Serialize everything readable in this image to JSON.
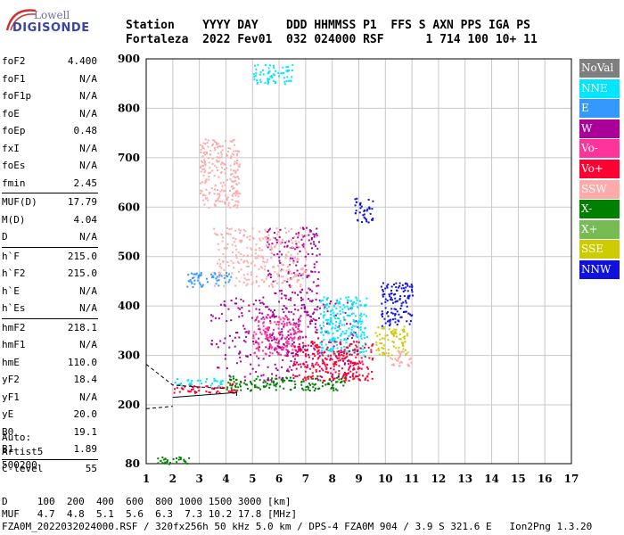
{
  "logo": {
    "line1": "Lowell",
    "line2": "DIGISONDE"
  },
  "header": {
    "labels": "Station    YYYY DAY    DDD HHMMSS P1  FFS S AXN PPS IGA PS",
    "values": "Fortaleza  2022 Fev01  032 024000 RSF      1 714 100 10+ 11"
  },
  "params": [
    {
      "group": [
        {
          "name": "foF2",
          "value": "4.400"
        },
        {
          "name": "foF1",
          "value": "N/A"
        },
        {
          "name": "foF1p",
          "value": "N/A"
        },
        {
          "name": "foE",
          "value": "N/A"
        },
        {
          "name": "foEp",
          "value": "0.48"
        },
        {
          "name": "fxI",
          "value": "N/A"
        },
        {
          "name": "foEs",
          "value": "N/A"
        },
        {
          "name": "fmin",
          "value": "2.45"
        }
      ]
    },
    {
      "group": [
        {
          "name": "MUF(D)",
          "value": "17.79"
        },
        {
          "name": "M(D)",
          "value": "4.04"
        },
        {
          "name": "D",
          "value": "N/A"
        }
      ]
    },
    {
      "group": [
        {
          "name": "h`F",
          "value": "215.0"
        },
        {
          "name": "h`F2",
          "value": "215.0"
        },
        {
          "name": "h`E",
          "value": "N/A"
        },
        {
          "name": "h`Es",
          "value": "N/A"
        }
      ]
    },
    {
      "group": [
        {
          "name": "hmF2",
          "value": "218.1"
        },
        {
          "name": "hmF1",
          "value": "N/A"
        },
        {
          "name": "hmE",
          "value": "110.0"
        },
        {
          "name": "yF2",
          "value": "18.4"
        },
        {
          "name": "yF1",
          "value": "N/A"
        },
        {
          "name": "yE",
          "value": "20.0"
        },
        {
          "name": "B0",
          "value": "19.1"
        },
        {
          "name": "B1",
          "value": "1.89"
        }
      ]
    },
    {
      "group": [
        {
          "name": "C-level",
          "value": "55"
        }
      ]
    }
  ],
  "auto": {
    "line1": "Auto:",
    "line2": "Artist5",
    "line3": "500200"
  },
  "legend": [
    {
      "label": "NoVal",
      "color": "#7f7f7f"
    },
    {
      "label": "NNE",
      "color": "#00e6ff"
    },
    {
      "label": "E",
      "color": "#3399ff"
    },
    {
      "label": "W",
      "color": "#aa0099"
    },
    {
      "label": "Vo-",
      "color": "#ff3399"
    },
    {
      "label": "Vo+",
      "color": "#ff0033"
    },
    {
      "label": "SSW",
      "color": "#ffaaaa"
    },
    {
      "label": "X-",
      "color": "#008000"
    },
    {
      "label": "X+",
      "color": "#77bb55"
    },
    {
      "label": "SSE",
      "color": "#cccc00"
    },
    {
      "label": "NNW",
      "color": "#1111dd"
    }
  ],
  "footer": {
    "d_row": "D     100  200  400  600  800 1000 1500 3000 [km]",
    "muf_row": "MUF   4.7  4.8  5.1  5.6  6.3  7.3 10.2 17.8 [MHz]",
    "info_row": "FZA0M_2022032024000.RSF / 320fx256h 50 kHz 5.0 km / DPS-4 FZA0M 904 / 3.9 S 321.6 E   Ion2Png 1.3.20"
  },
  "chart_data": {
    "type": "scatter",
    "title": "",
    "xlabel": "",
    "ylabel": "",
    "xlim": [
      1,
      17
    ],
    "ylim": [
      80,
      900
    ],
    "x_ticks": [
      1,
      2,
      3,
      4,
      5,
      6,
      7,
      8,
      9,
      10,
      11,
      12,
      13,
      14,
      15,
      16,
      17
    ],
    "y_ticks": [
      80,
      200,
      300,
      400,
      500,
      600,
      700,
      800,
      900
    ],
    "grid": true,
    "series": [
      {
        "name": "NoVal",
        "color": "#7f7f7f"
      },
      {
        "name": "NNE",
        "color": "#00e6ff"
      },
      {
        "name": "E",
        "color": "#3399ff"
      },
      {
        "name": "W",
        "color": "#aa0099"
      },
      {
        "name": "Vo-",
        "color": "#ff3399"
      },
      {
        "name": "Vo+",
        "color": "#ff0033"
      },
      {
        "name": "SSW",
        "color": "#ffaaaa"
      },
      {
        "name": "X-",
        "color": "#008000"
      },
      {
        "name": "X+",
        "color": "#77bb55"
      },
      {
        "name": "SSE",
        "color": "#cccc00"
      },
      {
        "name": "NNW",
        "color": "#1111dd"
      }
    ],
    "echo_regions": [
      {
        "series": "Vo+",
        "x": [
          2.0,
          4.4
        ],
        "y": [
          225,
          245
        ]
      },
      {
        "series": "NNE",
        "x": [
          2.0,
          4.0
        ],
        "y": [
          240,
          255
        ]
      },
      {
        "series": "X-",
        "x": [
          4.0,
          8.5
        ],
        "y": [
          230,
          260
        ]
      },
      {
        "series": "W",
        "x": [
          3.4,
          9.0
        ],
        "y": [
          250,
          420
        ]
      },
      {
        "series": "W",
        "x": [
          5.5,
          7.5
        ],
        "y": [
          300,
          560
        ]
      },
      {
        "series": "Vo-",
        "x": [
          5.0,
          6.8
        ],
        "y": [
          300,
          380
        ]
      },
      {
        "series": "NNE",
        "x": [
          7.5,
          9.3
        ],
        "y": [
          300,
          420
        ]
      },
      {
        "series": "SSW",
        "x": [
          3.5,
          7.0
        ],
        "y": [
          440,
          560
        ]
      },
      {
        "series": "E",
        "x": [
          2.5,
          4.2
        ],
        "y": [
          440,
          470
        ]
      },
      {
        "series": "NNW",
        "x": [
          8.8,
          9.5
        ],
        "y": [
          570,
          620
        ]
      },
      {
        "series": "NNW",
        "x": [
          9.8,
          11.0
        ],
        "y": [
          360,
          450
        ]
      },
      {
        "series": "SSE",
        "x": [
          9.6,
          10.8
        ],
        "y": [
          300,
          360
        ]
      },
      {
        "series": "SSW",
        "x": [
          10.0,
          11.0
        ],
        "y": [
          280,
          310
        ]
      },
      {
        "series": "Vo+",
        "x": [
          6.5,
          9.5
        ],
        "y": [
          250,
          330
        ]
      },
      {
        "series": "SSW",
        "x": [
          3.0,
          4.5
        ],
        "y": [
          600,
          740
        ]
      },
      {
        "series": "NNE",
        "x": [
          5.0,
          6.5
        ],
        "y": [
          850,
          890
        ]
      },
      {
        "series": "X-",
        "x": [
          1.3,
          2.6
        ],
        "y": [
          80,
          95
        ]
      }
    ],
    "trace_lines": [
      {
        "style": "dashed",
        "points": [
          [
            1,
            282
          ],
          [
            2,
            240
          ],
          [
            3,
            236
          ],
          [
            4,
            233
          ]
        ]
      },
      {
        "style": "solid",
        "points": [
          [
            2,
            215
          ],
          [
            4.4,
            225
          ],
          [
            4.4,
            218
          ],
          [
            4.4,
            222
          ]
        ]
      },
      {
        "style": "dashed",
        "points": [
          [
            1,
            192
          ],
          [
            2,
            197
          ]
        ]
      }
    ]
  }
}
